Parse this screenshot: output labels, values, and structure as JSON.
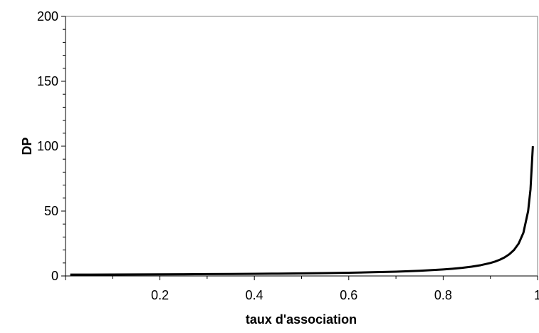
{
  "chart_data": {
    "type": "line",
    "xlabel": "taux d'association",
    "ylabel": "DP",
    "xlim": [
      0,
      1
    ],
    "ylim": [
      0,
      200
    ],
    "x_ticks": [
      "0.2",
      "0.4",
      "0.6",
      "0.8",
      "1"
    ],
    "y_ticks": [
      "0",
      "50",
      "100",
      "150",
      "200"
    ],
    "grid": false,
    "legend": "none",
    "series": [
      {
        "color": "#000000",
        "x": [
          0.01,
          0.05,
          0.1,
          0.15,
          0.2,
          0.25,
          0.3,
          0.35,
          0.4,
          0.45,
          0.5,
          0.55,
          0.6,
          0.65,
          0.7,
          0.75,
          0.8,
          0.82,
          0.84,
          0.86,
          0.88,
          0.9,
          0.91,
          0.92,
          0.93,
          0.94,
          0.95,
          0.96,
          0.97,
          0.98,
          0.985,
          0.99
        ],
        "y": [
          1.01,
          1.05,
          1.11,
          1.18,
          1.25,
          1.33,
          1.43,
          1.54,
          1.67,
          1.82,
          2.0,
          2.22,
          2.5,
          2.86,
          3.33,
          4.0,
          5.0,
          5.56,
          6.25,
          7.14,
          8.33,
          10.0,
          11.1,
          12.5,
          14.3,
          16.7,
          20.0,
          25.0,
          33.3,
          50.0,
          66.7,
          100.0
        ]
      }
    ]
  }
}
